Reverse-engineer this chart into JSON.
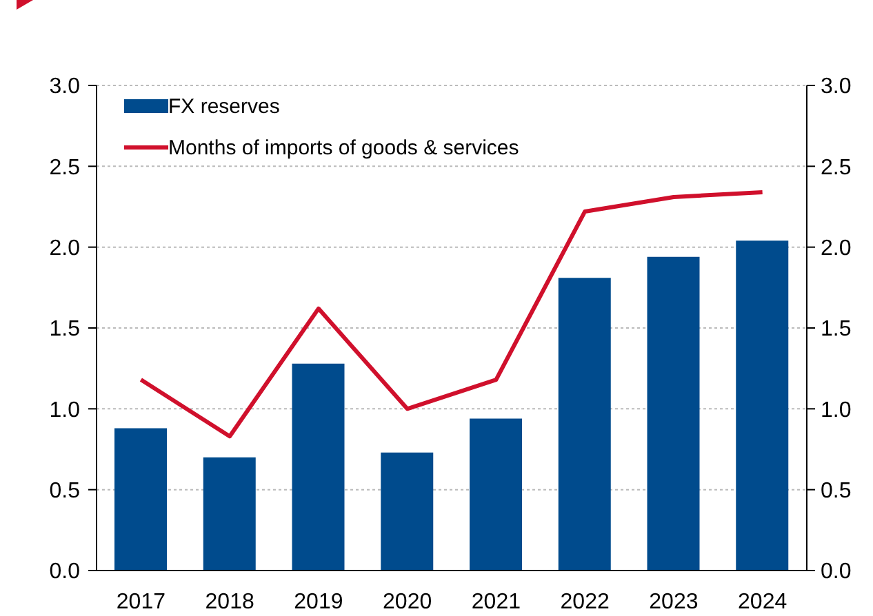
{
  "chart_data": {
    "type": "bar",
    "categories": [
      "2017",
      "2018",
      "2019",
      "2020",
      "2021",
      "2022",
      "2023",
      "2024"
    ],
    "series": [
      {
        "name": "FX reserves",
        "color": "#004b8d",
        "values": [
          0.88,
          0.7,
          1.28,
          0.73,
          0.94,
          1.81,
          1.94,
          2.04
        ]
      },
      {
        "name": "Months of imports of goods & services",
        "type": "line",
        "color": "#d0102c",
        "values": [
          1.18,
          0.83,
          1.62,
          1.0,
          1.18,
          2.22,
          2.31,
          2.34
        ]
      }
    ],
    "ylim": [
      0,
      3
    ],
    "yticks": [
      {
        "value": 0,
        "label": "0.0"
      },
      {
        "value": 0.5,
        "label": "0.5"
      },
      {
        "value": 1,
        "label": "1.0"
      },
      {
        "value": 1.5,
        "label": "1.5"
      },
      {
        "value": 2,
        "label": "2.0"
      },
      {
        "value": 2.5,
        "label": "2.5"
      },
      {
        "value": 3,
        "label": "3.0"
      }
    ],
    "y2lim": [
      0,
      3
    ],
    "y2ticks": [
      {
        "value": 0,
        "label": "0.0"
      },
      {
        "value": 0.5,
        "label": "0.5"
      },
      {
        "value": 1,
        "label": "1.0"
      },
      {
        "value": 1.5,
        "label": "1.5"
      },
      {
        "value": 2,
        "label": "2.0"
      },
      {
        "value": 2.5,
        "label": "2.5"
      },
      {
        "value": 3,
        "label": "3.0"
      }
    ],
    "grid": "y",
    "legend": "top left",
    "marker": "none",
    "line_style": "solid"
  }
}
